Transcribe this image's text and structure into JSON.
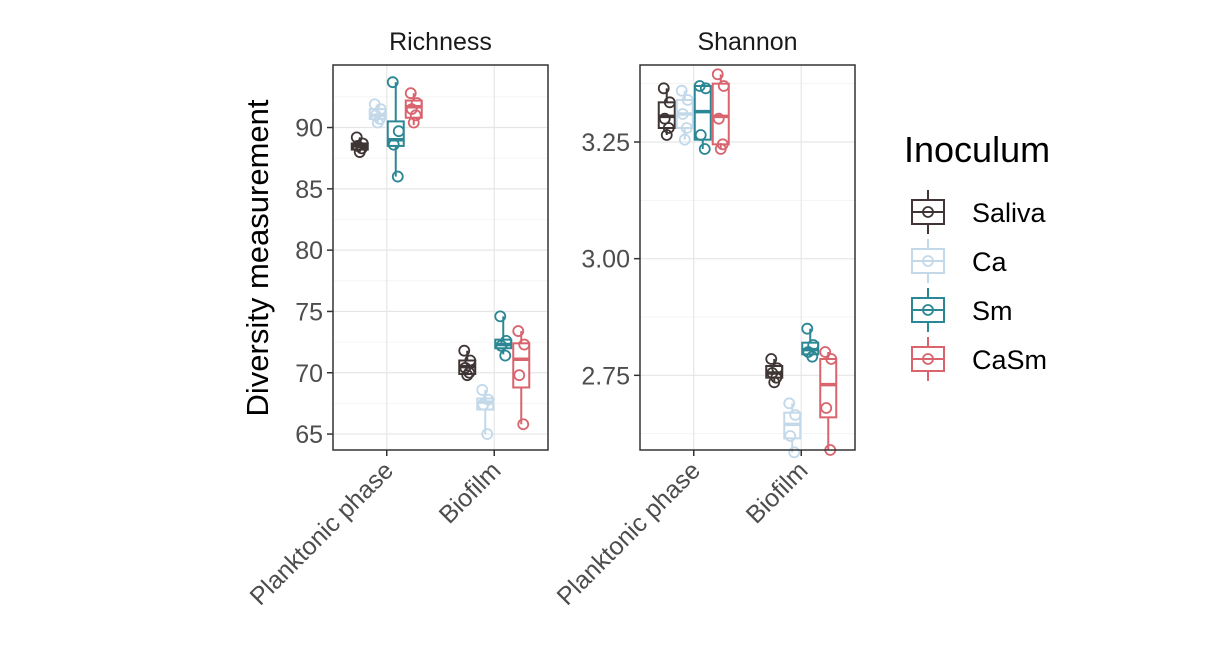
{
  "chart_data": {
    "type": "boxplot",
    "ylabel": "Diversity measurement",
    "legend": {
      "title": "Inoculum",
      "placement": "right",
      "entries": [
        {
          "name": "Saliva",
          "color": "#3f3535"
        },
        {
          "name": "Ca",
          "color": "#c3d9ea"
        },
        {
          "name": "Sm",
          "color": "#2b8794"
        },
        {
          "name": "CaSm",
          "color": "#d9646e"
        }
      ]
    },
    "categories": [
      "Planktonic phase",
      "Biofilm"
    ],
    "panels": [
      {
        "title": "Richness",
        "ylim": [
          63.7,
          95.1
        ],
        "yticks": [
          65,
          70,
          75,
          80,
          85,
          90
        ],
        "ytick_labels": [
          "65",
          "70",
          "75",
          "80",
          "85",
          "90"
        ],
        "groups": [
          {
            "category": "Planktonic phase",
            "inoculum": "Saliva",
            "min": 88.0,
            "q1": 88.2,
            "median": 88.5,
            "q3": 88.7,
            "max": 89.2,
            "points": [
              89.2,
              88.7,
              88.5,
              88.3,
              88.0
            ]
          },
          {
            "category": "Planktonic phase",
            "inoculum": "Ca",
            "min": 90.4,
            "q1": 90.7,
            "median": 91.0,
            "q3": 91.5,
            "max": 91.9,
            "points": [
              91.9,
              91.5,
              91.0,
              90.7,
              90.4
            ]
          },
          {
            "category": "Planktonic phase",
            "inoculum": "Sm",
            "min": 86.0,
            "q1": 88.5,
            "median": 89.0,
            "q3": 90.5,
            "max": 93.7,
            "points": [
              93.7,
              89.7,
              88.6,
              86.0
            ]
          },
          {
            "category": "Planktonic phase",
            "inoculum": "CaSm",
            "min": 90.2,
            "q1": 90.8,
            "median": 91.7,
            "q3": 92.2,
            "max": 92.8,
            "points": [
              92.8,
              92.0,
              91.5,
              91.0,
              90.4
            ]
          },
          {
            "category": "Biofilm",
            "inoculum": "Saliva",
            "min": 69.8,
            "q1": 69.9,
            "median": 70.5,
            "q3": 71.0,
            "max": 71.8,
            "points": [
              71.8,
              71.0,
              70.4,
              70.0,
              69.8
            ]
          },
          {
            "category": "Biofilm",
            "inoculum": "Ca",
            "min": 65.0,
            "q1": 67.0,
            "median": 67.6,
            "q3": 67.9,
            "max": 68.6,
            "points": [
              68.6,
              67.8,
              67.4,
              65.0
            ]
          },
          {
            "category": "Biofilm",
            "inoculum": "Sm",
            "min": 71.5,
            "q1": 72.0,
            "median": 72.3,
            "q3": 72.7,
            "max": 74.6,
            "points": [
              74.6,
              72.6,
              72.2,
              71.4
            ]
          },
          {
            "category": "Biofilm",
            "inoculum": "CaSm",
            "min": 65.8,
            "q1": 68.8,
            "median": 71.1,
            "q3": 72.4,
            "max": 73.4,
            "points": [
              73.4,
              72.3,
              69.8,
              65.8
            ]
          }
        ]
      },
      {
        "title": "Shannon",
        "ylim": [
          2.59,
          3.415
        ],
        "yticks": [
          2.75,
          3.0,
          3.25
        ],
        "ytick_labels": [
          "2.75",
          "3.00",
          "3.25"
        ],
        "groups": [
          {
            "category": "Planktonic phase",
            "inoculum": "Saliva",
            "min": 3.265,
            "q1": 3.28,
            "median": 3.305,
            "q3": 3.335,
            "max": 3.365,
            "points": [
              3.365,
              3.335,
              3.3,
              3.28,
              3.265
            ]
          },
          {
            "category": "Planktonic phase",
            "inoculum": "Ca",
            "min": 3.255,
            "q1": 3.28,
            "median": 3.31,
            "q3": 3.34,
            "max": 3.36,
            "points": [
              3.36,
              3.34,
              3.31,
              3.28,
              3.255
            ]
          },
          {
            "category": "Planktonic phase",
            "inoculum": "Sm",
            "min": 3.235,
            "q1": 3.255,
            "median": 3.315,
            "q3": 3.37,
            "max": 3.37,
            "points": [
              3.37,
              3.365,
              3.265,
              3.235
            ]
          },
          {
            "category": "Planktonic phase",
            "inoculum": "CaSm",
            "min": 3.235,
            "q1": 3.245,
            "median": 3.305,
            "q3": 3.375,
            "max": 3.395,
            "points": [
              3.395,
              3.37,
              3.3,
              3.245,
              3.235
            ]
          },
          {
            "category": "Biofilm",
            "inoculum": "Saliva",
            "min": 2.735,
            "q1": 2.745,
            "median": 2.755,
            "q3": 2.77,
            "max": 2.785,
            "points": [
              2.785,
              2.765,
              2.755,
              2.745,
              2.735
            ]
          },
          {
            "category": "Biofilm",
            "inoculum": "Ca",
            "min": 2.585,
            "q1": 2.615,
            "median": 2.645,
            "q3": 2.67,
            "max": 2.69,
            "points": [
              2.69,
              2.665,
              2.62,
              2.585
            ]
          },
          {
            "category": "Biofilm",
            "inoculum": "Sm",
            "min": 2.79,
            "q1": 2.795,
            "median": 2.805,
            "q3": 2.82,
            "max": 2.85,
            "points": [
              2.85,
              2.815,
              2.8,
              2.79
            ]
          },
          {
            "category": "Biofilm",
            "inoculum": "CaSm",
            "min": 2.59,
            "q1": 2.66,
            "median": 2.73,
            "q3": 2.785,
            "max": 2.8,
            "points": [
              2.8,
              2.785,
              2.68,
              2.59
            ]
          }
        ]
      }
    ]
  }
}
